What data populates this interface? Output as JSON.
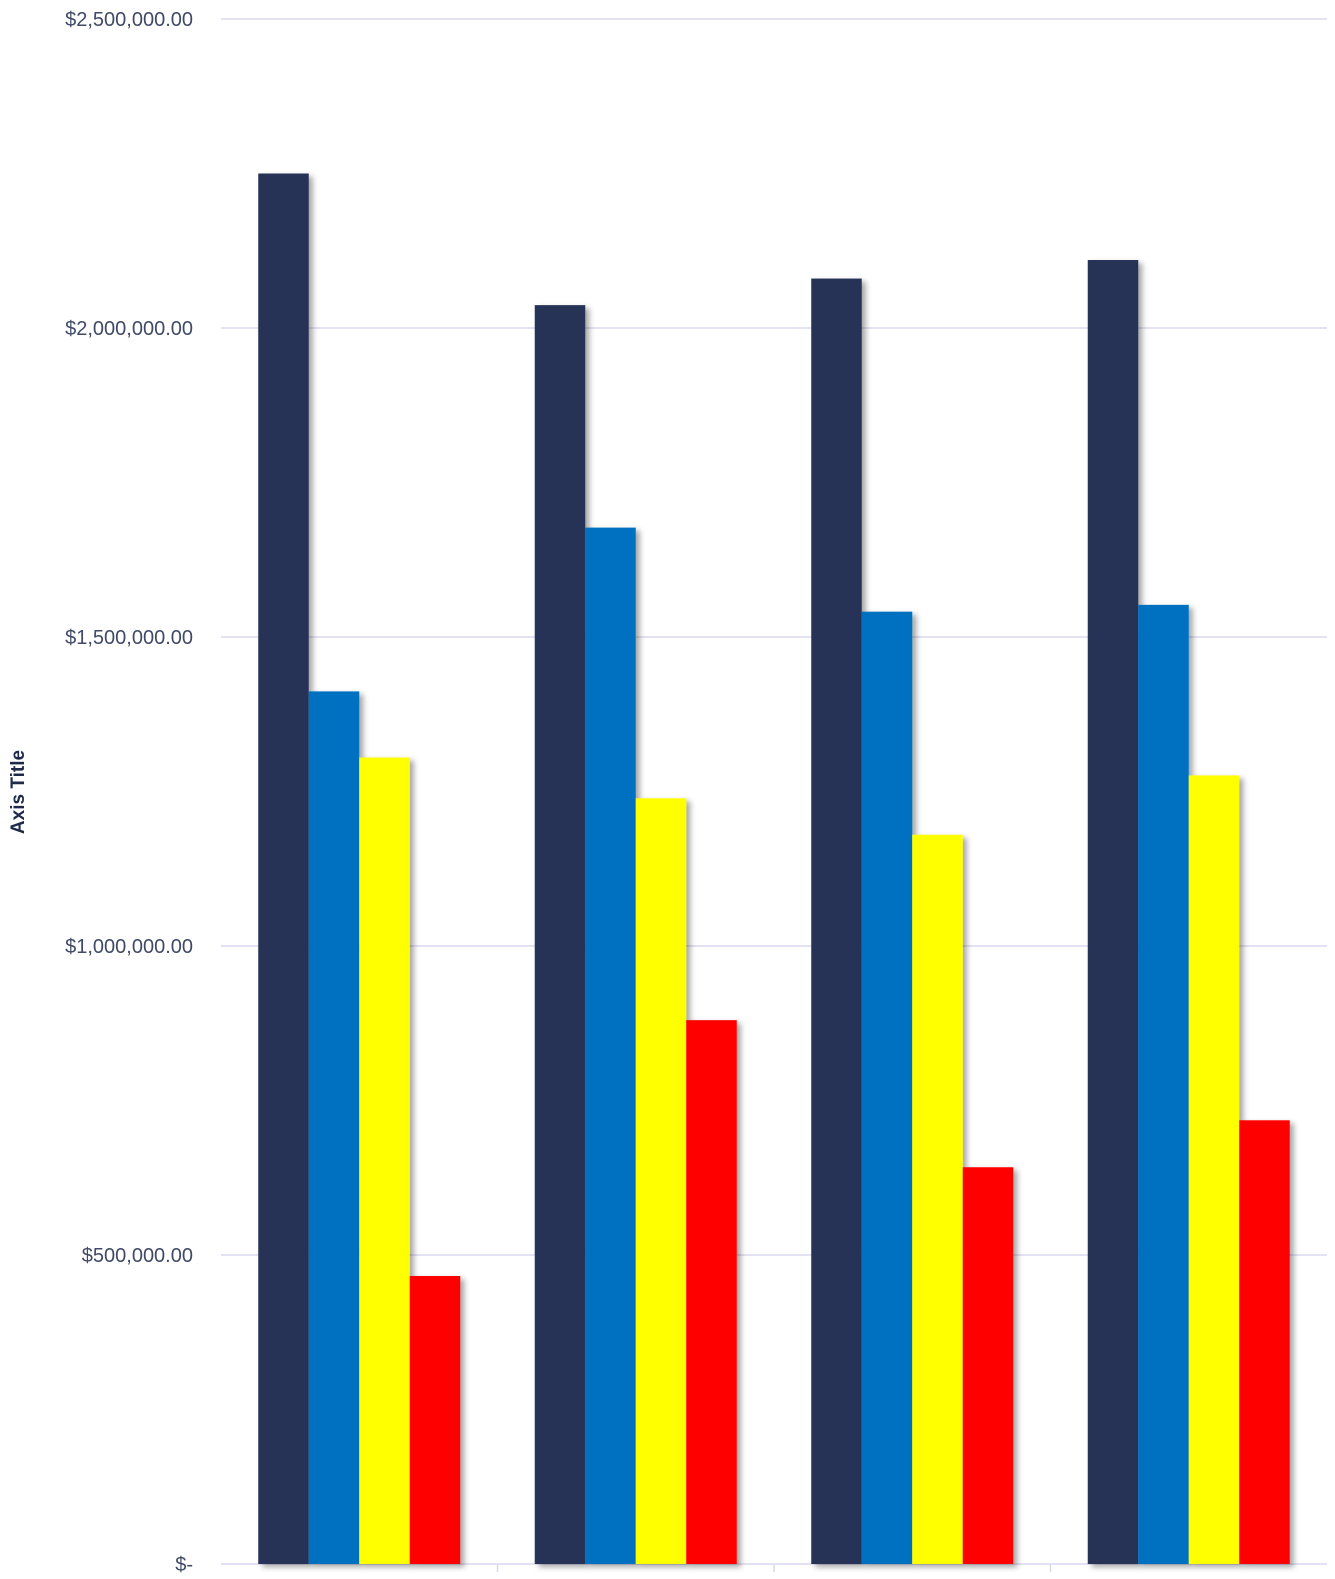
{
  "chart_data": {
    "type": "bar",
    "categories": [
      "",
      "",
      "",
      ""
    ],
    "series": [
      {
        "color": "#253356",
        "values": [
          2250000,
          2037000,
          2080000,
          2110000
        ]
      },
      {
        "color": "#0070c0",
        "values": [
          1412000,
          1677000,
          1541000,
          1552000
        ]
      },
      {
        "color": "#ffff00",
        "values": [
          1305000,
          1239000,
          1180000,
          1276000
        ]
      },
      {
        "color": "#ff0000",
        "values": [
          466000,
          880000,
          642000,
          718000
        ]
      }
    ],
    "ylabel": "Axis Title",
    "ylim": [
      0,
      2500000
    ],
    "yticks": [
      0,
      500000,
      1000000,
      1500000,
      2000000,
      2500000
    ],
    "ytick_labels": [
      "$-",
      "$500,000.00",
      "$1,000,000.00",
      "$1,500,000.00",
      "$2,000,000.00",
      "$2,500,000.00"
    ],
    "grid": true,
    "legend": "none"
  }
}
